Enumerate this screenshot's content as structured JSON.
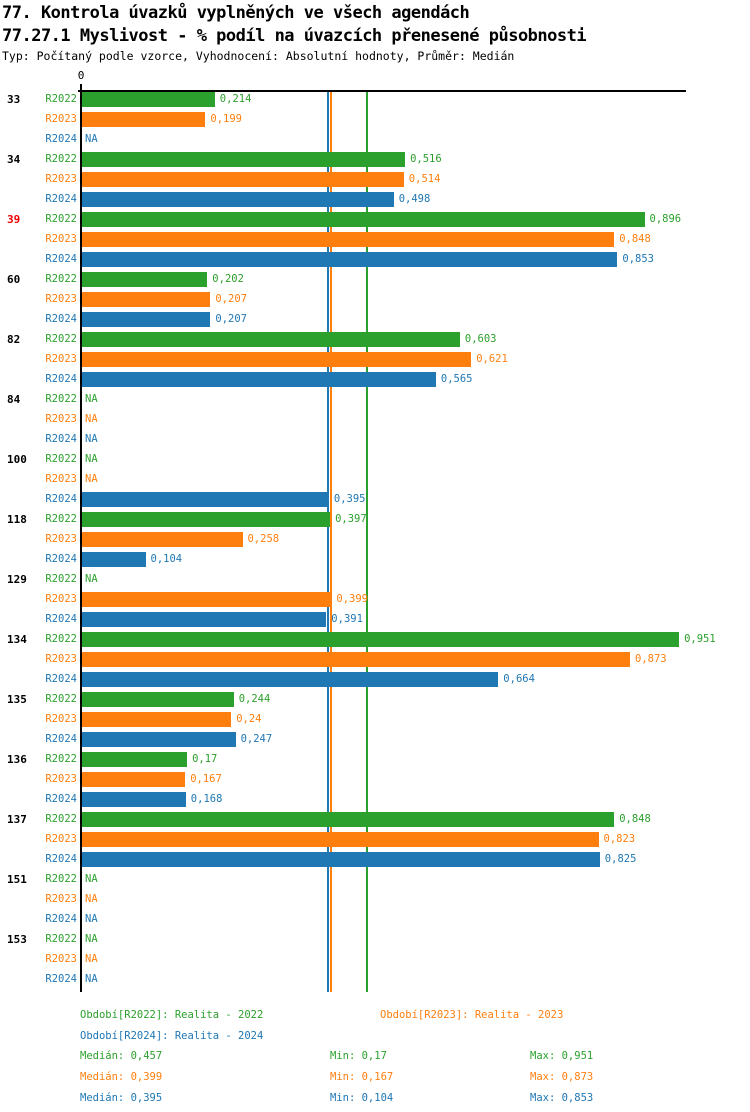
{
  "header": {
    "title": "77. Kontrola úvazků vyplněných ve všech agendách",
    "subtitle": "77.27.1 Myslivost - % podíl na úvazcích přenesené působnosti",
    "meta": "Typ: Počítaný podle vzorce, Vyhodnocení: Absolutní hodnoty, Průměr: Medián"
  },
  "colors": {
    "r2022": "#2ca02c",
    "r2023": "#ff7f0e",
    "r2024": "#1f77b4",
    "highlight_row": "#ee0000",
    "axis": "#000000"
  },
  "chart_data": {
    "type": "bar",
    "orientation": "horizontal",
    "x_axis": {
      "zero_label": "0",
      "xlim": [
        0,
        0.962
      ],
      "grid": false
    },
    "series": [
      {
        "key": "r2022",
        "label": "R2022",
        "color": "#2ca02c"
      },
      {
        "key": "r2023",
        "label": "R2023",
        "color": "#ff7f0e"
      },
      {
        "key": "r2024",
        "label": "R2024",
        "color": "#1f77b4"
      }
    ],
    "groups": [
      {
        "id": "33",
        "highlight": false,
        "values": [
          0.214,
          0.199,
          null
        ],
        "value_labels": [
          "0,214",
          "0,199",
          "NA"
        ]
      },
      {
        "id": "34",
        "highlight": false,
        "values": [
          0.516,
          0.514,
          0.498
        ],
        "value_labels": [
          "0,516",
          "0,514",
          "0,498"
        ]
      },
      {
        "id": "39",
        "highlight": true,
        "values": [
          0.896,
          0.848,
          0.853
        ],
        "value_labels": [
          "0,896",
          "0,848",
          "0,853"
        ]
      },
      {
        "id": "60",
        "highlight": false,
        "values": [
          0.202,
          0.207,
          0.207
        ],
        "value_labels": [
          "0,202",
          "0,207",
          "0,207"
        ]
      },
      {
        "id": "82",
        "highlight": false,
        "values": [
          0.603,
          0.621,
          0.565
        ],
        "value_labels": [
          "0,603",
          "0,621",
          "0,565"
        ]
      },
      {
        "id": "84",
        "highlight": false,
        "values": [
          null,
          null,
          null
        ],
        "value_labels": [
          "NA",
          "NA",
          "NA"
        ]
      },
      {
        "id": "100",
        "highlight": false,
        "values": [
          null,
          null,
          0.395
        ],
        "value_labels": [
          "NA",
          "NA",
          "0,395"
        ]
      },
      {
        "id": "118",
        "highlight": false,
        "values": [
          0.397,
          0.258,
          0.104
        ],
        "value_labels": [
          "0,397",
          "0,258",
          "0,104"
        ]
      },
      {
        "id": "129",
        "highlight": false,
        "values": [
          null,
          0.399,
          0.391
        ],
        "value_labels": [
          "NA",
          "0,399",
          "0,391"
        ]
      },
      {
        "id": "134",
        "highlight": false,
        "values": [
          0.951,
          0.873,
          0.664
        ],
        "value_labels": [
          "0,951",
          "0,873",
          "0,664"
        ]
      },
      {
        "id": "135",
        "highlight": false,
        "values": [
          0.244,
          0.24,
          0.247
        ],
        "value_labels": [
          "0,244",
          "0,24",
          "0,247"
        ]
      },
      {
        "id": "136",
        "highlight": false,
        "values": [
          0.17,
          0.167,
          0.168
        ],
        "value_labels": [
          "0,17",
          "0,167",
          "0,168"
        ]
      },
      {
        "id": "137",
        "highlight": false,
        "values": [
          0.848,
          0.823,
          0.825
        ],
        "value_labels": [
          "0,848",
          "0,823",
          "0,825"
        ]
      },
      {
        "id": "151",
        "highlight": false,
        "values": [
          null,
          null,
          null
        ],
        "value_labels": [
          "NA",
          "NA",
          "NA"
        ]
      },
      {
        "id": "153",
        "highlight": false,
        "values": [
          null,
          null,
          null
        ],
        "value_labels": [
          "NA",
          "NA",
          "NA"
        ]
      }
    ],
    "median_lines": [
      {
        "series": "r2024",
        "value": 0.395
      },
      {
        "series": "r2023",
        "value": 0.399
      },
      {
        "series": "r2022",
        "value": 0.457
      }
    ]
  },
  "footer": {
    "periods": [
      {
        "series": "r2022",
        "label": "Období[R2022]: Realita - 2022",
        "row": 0,
        "col": 0
      },
      {
        "series": "r2023",
        "label": "Období[R2023]: Realita - 2023",
        "row": 0,
        "col": 1
      },
      {
        "series": "r2024",
        "label": "Období[R2024]: Realita - 2024",
        "row": 1,
        "col": 0
      }
    ],
    "stats": [
      {
        "series": "r2022",
        "median": "Medián: 0,457",
        "min": "Min: 0,17",
        "max": "Max: 0,951"
      },
      {
        "series": "r2023",
        "median": "Medián: 0,399",
        "min": "Min: 0,167",
        "max": "Max: 0,873"
      },
      {
        "series": "r2024",
        "median": "Medián: 0,395",
        "min": "Min: 0,104",
        "max": "Max: 0,853"
      }
    ]
  }
}
